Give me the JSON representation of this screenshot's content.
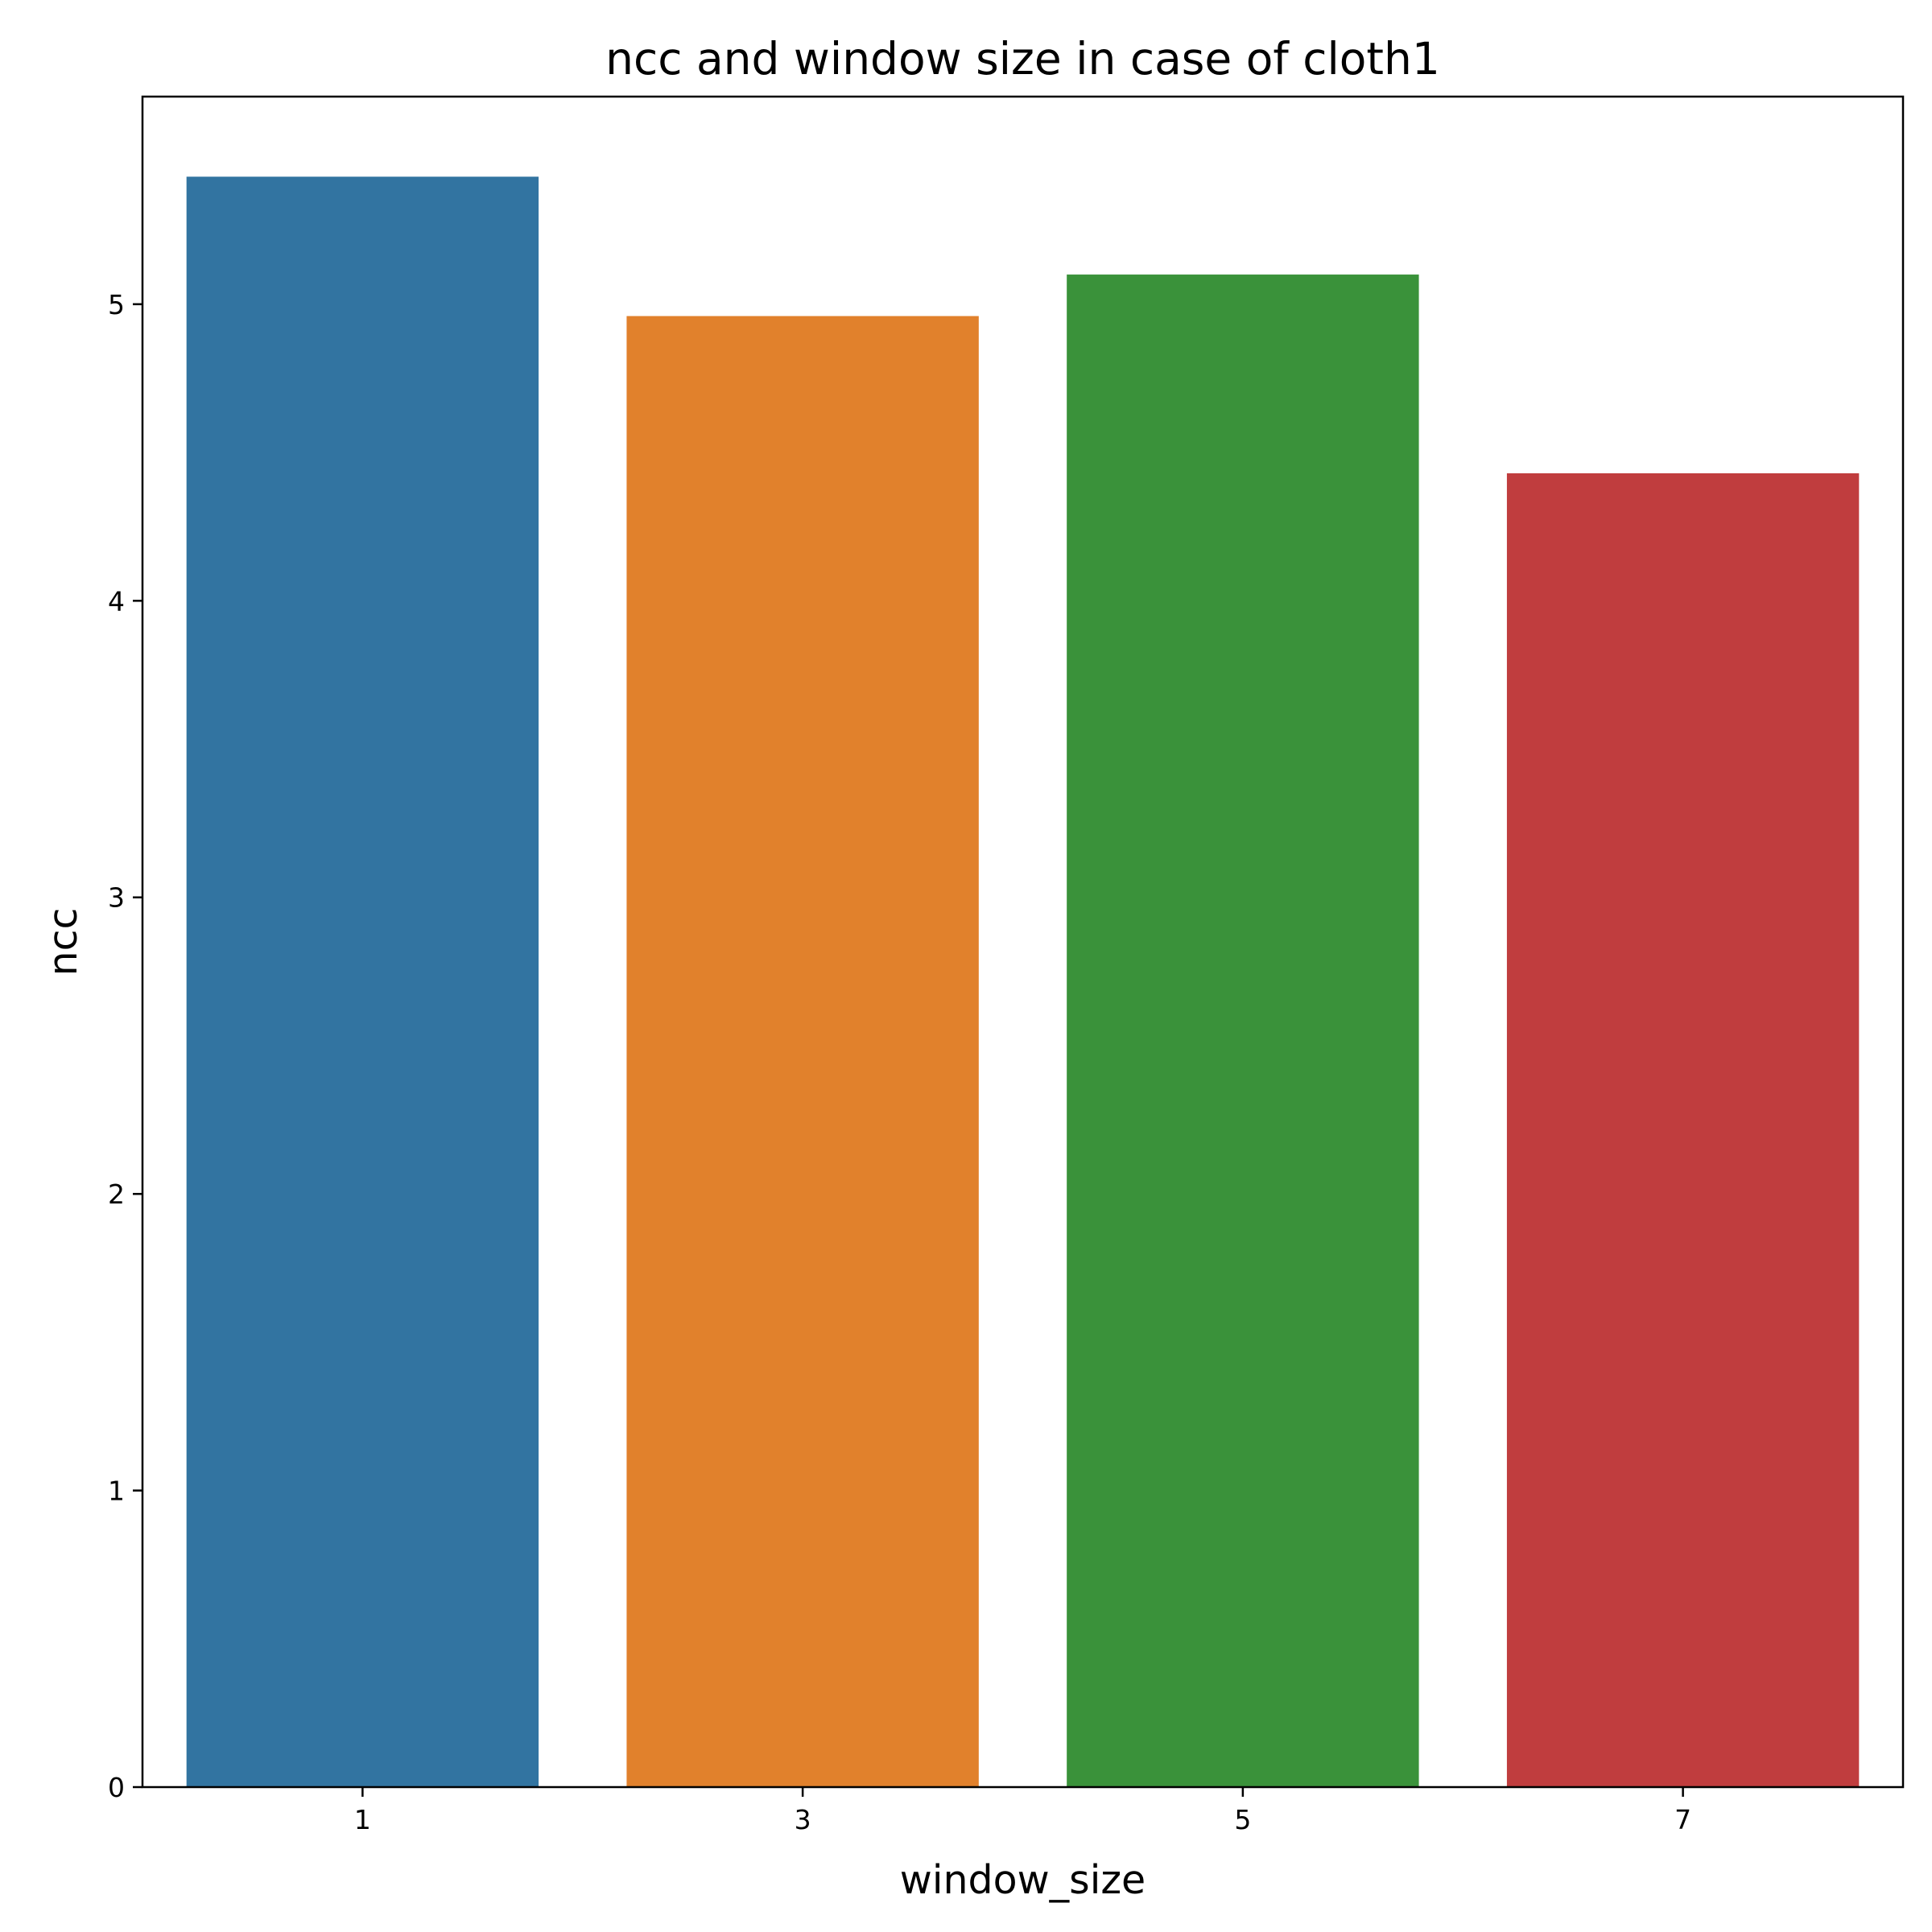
{
  "chart_data": {
    "type": "bar",
    "title": "ncc and window size in case of cloth1",
    "xlabel": "window_size",
    "ylabel": "ncc",
    "categories": [
      "1",
      "3",
      "5",
      "7"
    ],
    "values": [
      5.43,
      4.96,
      5.1,
      4.43
    ],
    "colors": [
      "#3274a1",
      "#e1812c",
      "#3a923a",
      "#c03d3e"
    ],
    "ylim": [
      0,
      5.7
    ],
    "yticks": [
      0,
      1,
      2,
      3,
      4,
      5
    ],
    "grid": false,
    "legend": "none"
  }
}
